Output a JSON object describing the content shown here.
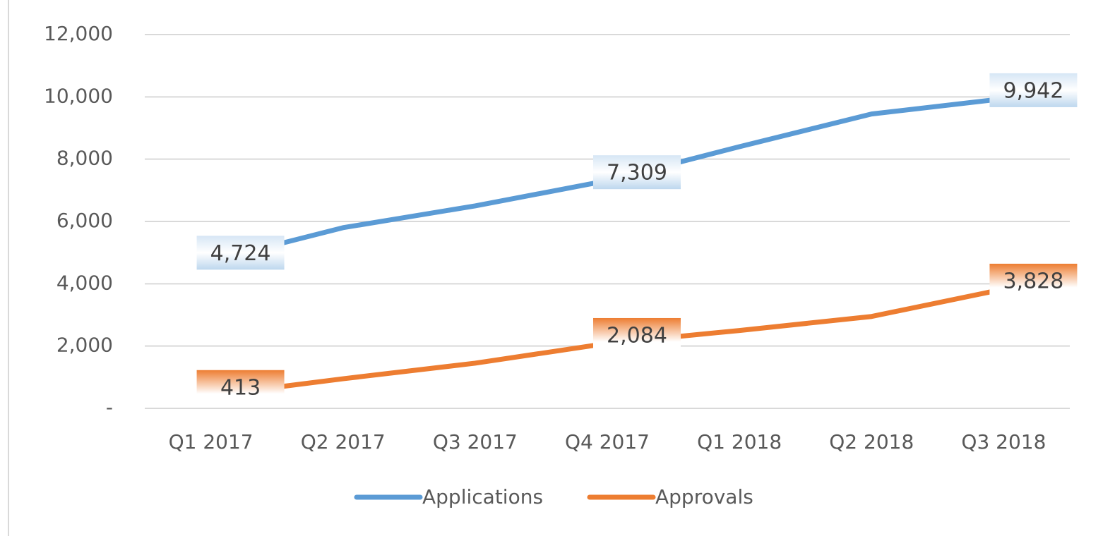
{
  "chart_data": {
    "type": "line",
    "categories": [
      "Q1 2017",
      "Q2 2017",
      "Q3 2017",
      "Q4 2017",
      "Q1 2018",
      "Q2 2018",
      "Q3 2018"
    ],
    "series": [
      {
        "name": "Applications",
        "color": "#5b9bd5",
        "values": [
          4724,
          5800,
          6500,
          7309,
          8400,
          9450,
          9942
        ],
        "value_labels": [
          "4,724",
          null,
          null,
          "7,309",
          null,
          null,
          "9,942"
        ]
      },
      {
        "name": "Approvals",
        "color": "#ed7d31",
        "values": [
          413,
          950,
          1450,
          2084,
          2500,
          2950,
          3828
        ],
        "value_labels": [
          "413",
          null,
          null,
          "2,084",
          null,
          null,
          "3,828"
        ]
      }
    ],
    "ylim": [
      0,
      12000
    ],
    "yticks": [
      {
        "value": 0,
        "label": "-"
      },
      {
        "value": 2000,
        "label": "2,000"
      },
      {
        "value": 4000,
        "label": "4,000"
      },
      {
        "value": 6000,
        "label": "6,000"
      },
      {
        "value": 8000,
        "label": "8,000"
      },
      {
        "value": 10000,
        "label": "10,000"
      },
      {
        "value": 12000,
        "label": "12,000"
      }
    ],
    "grid": true,
    "legend": "bottom"
  }
}
